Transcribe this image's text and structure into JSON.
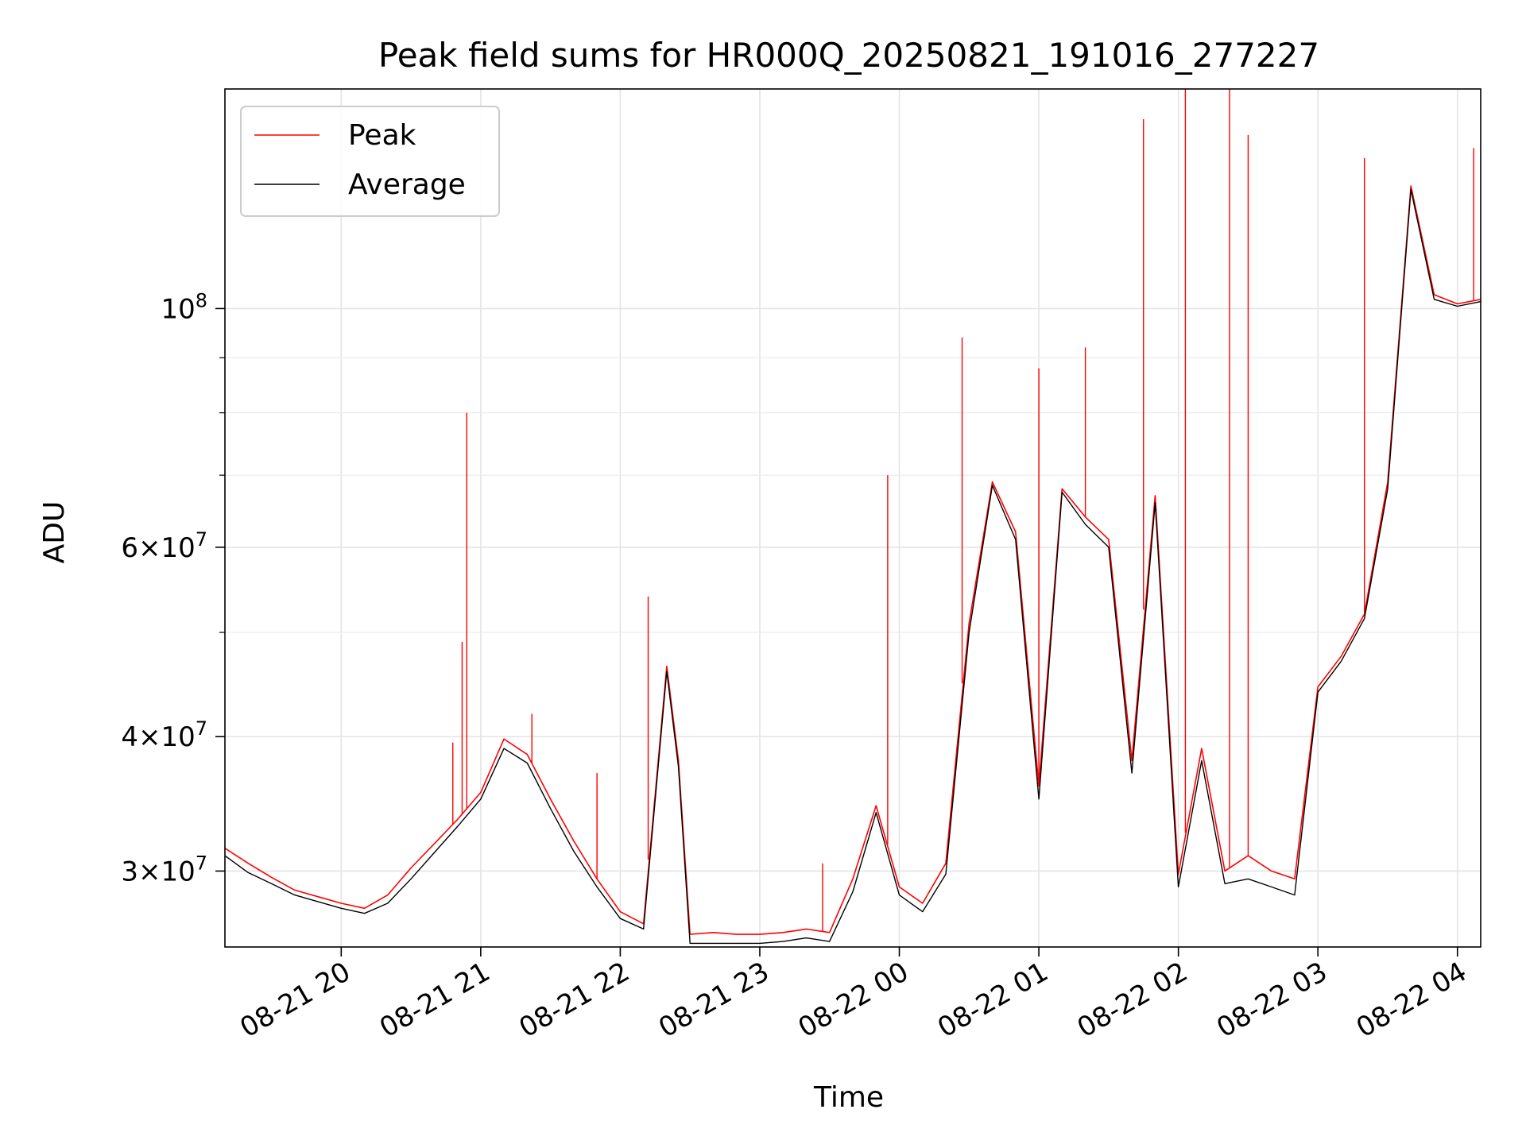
{
  "chart_data": {
    "type": "line",
    "title": "Peak field sums for HR000Q_20250821_191016_277227",
    "xlabel": "Time",
    "ylabel": "ADU",
    "y_scale": "log",
    "ylim": [
      25500000,
      160000000
    ],
    "xlim": [
      "2025-08-21 19:10",
      "2025-08-22 04:10"
    ],
    "grid": true,
    "legend_position": "upper-left",
    "x_ticks": [
      {
        "t": "2025-08-21 20:00",
        "label": "08-21 20"
      },
      {
        "t": "2025-08-21 21:00",
        "label": "08-21 21"
      },
      {
        "t": "2025-08-21 22:00",
        "label": "08-21 22"
      },
      {
        "t": "2025-08-21 23:00",
        "label": "08-21 23"
      },
      {
        "t": "2025-08-22 00:00",
        "label": "08-22 00"
      },
      {
        "t": "2025-08-22 01:00",
        "label": "08-22 01"
      },
      {
        "t": "2025-08-22 02:00",
        "label": "08-22 02"
      },
      {
        "t": "2025-08-22 03:00",
        "label": "08-22 03"
      },
      {
        "t": "2025-08-22 04:00",
        "label": "08-22 04"
      }
    ],
    "y_ticks": [
      {
        "value": 30000000,
        "label": "3×10⁷",
        "base": "3×10",
        "exp": "7"
      },
      {
        "value": 40000000,
        "label": "4×10⁷",
        "base": "4×10",
        "exp": "7"
      },
      {
        "value": 60000000,
        "label": "6×10⁷",
        "base": "6×10",
        "exp": "7"
      },
      {
        "value": 100000000,
        "label": "10⁸",
        "base": "10",
        "exp": "8"
      }
    ],
    "y_minor_ticks": [
      50000000,
      70000000,
      80000000,
      90000000
    ],
    "series": [
      {
        "name": "Peak",
        "color": "#ff0000",
        "x": [
          "2025-08-21 19:10",
          "2025-08-21 19:20",
          "2025-08-21 19:30",
          "2025-08-21 19:40",
          "2025-08-21 19:50",
          "2025-08-21 20:00",
          "2025-08-21 20:10",
          "2025-08-21 20:20",
          "2025-08-21 20:30",
          "2025-08-21 20:40",
          "2025-08-21 20:50",
          "2025-08-21 21:00",
          "2025-08-21 21:10",
          "2025-08-21 21:20",
          "2025-08-21 21:30",
          "2025-08-21 21:40",
          "2025-08-21 21:50",
          "2025-08-21 22:00",
          "2025-08-21 22:10",
          "2025-08-21 22:20",
          "2025-08-21 22:25",
          "2025-08-21 22:30",
          "2025-08-21 22:40",
          "2025-08-21 22:50",
          "2025-08-21 23:00",
          "2025-08-21 23:10",
          "2025-08-21 23:20",
          "2025-08-21 23:30",
          "2025-08-21 23:40",
          "2025-08-21 23:50",
          "2025-08-22 00:00",
          "2025-08-22 00:10",
          "2025-08-22 00:20",
          "2025-08-22 00:30",
          "2025-08-22 00:40",
          "2025-08-22 00:50",
          "2025-08-22 01:00",
          "2025-08-22 01:10",
          "2025-08-22 01:20",
          "2025-08-22 01:30",
          "2025-08-22 01:40",
          "2025-08-22 01:50",
          "2025-08-22 02:00",
          "2025-08-22 02:10",
          "2025-08-22 02:20",
          "2025-08-22 02:30",
          "2025-08-22 02:40",
          "2025-08-22 02:50",
          "2025-08-22 03:00",
          "2025-08-22 03:10",
          "2025-08-22 03:20",
          "2025-08-22 03:30",
          "2025-08-22 03:40",
          "2025-08-22 03:50",
          "2025-08-22 04:00",
          "2025-08-22 04:10"
        ],
        "values": [
          31500000,
          30500000,
          29600000,
          28800000,
          28400000,
          28000000,
          27700000,
          28500000,
          30200000,
          31800000,
          33500000,
          35500000,
          39800000,
          38500000,
          35000000,
          32000000,
          29500000,
          27500000,
          26800000,
          46500000,
          38000000,
          26200000,
          26300000,
          26200000,
          26200000,
          26300000,
          26500000,
          26300000,
          29500000,
          34500000,
          29000000,
          28000000,
          30500000,
          51000000,
          69000000,
          62000000,
          36000000,
          68000000,
          64000000,
          61000000,
          38000000,
          67000000,
          29800000,
          39000000,
          30000000,
          31000000,
          30000000,
          29500000,
          44500000,
          47500000,
          52000000,
          69000000,
          130000000,
          103000000,
          101000000,
          102000000
        ]
      },
      {
        "name": "Average",
        "color": "#000000",
        "x": [
          "2025-08-21 19:10",
          "2025-08-21 19:20",
          "2025-08-21 19:30",
          "2025-08-21 19:40",
          "2025-08-21 19:50",
          "2025-08-21 20:00",
          "2025-08-21 20:10",
          "2025-08-21 20:20",
          "2025-08-21 20:30",
          "2025-08-21 20:40",
          "2025-08-21 20:50",
          "2025-08-21 21:00",
          "2025-08-21 21:10",
          "2025-08-21 21:20",
          "2025-08-21 21:30",
          "2025-08-21 21:40",
          "2025-08-21 21:50",
          "2025-08-21 22:00",
          "2025-08-21 22:10",
          "2025-08-21 22:20",
          "2025-08-21 22:25",
          "2025-08-21 22:30",
          "2025-08-21 22:40",
          "2025-08-21 22:50",
          "2025-08-21 23:00",
          "2025-08-21 23:10",
          "2025-08-21 23:20",
          "2025-08-21 23:30",
          "2025-08-21 23:40",
          "2025-08-21 23:50",
          "2025-08-22 00:00",
          "2025-08-22 00:10",
          "2025-08-22 00:20",
          "2025-08-22 00:30",
          "2025-08-22 00:40",
          "2025-08-22 00:50",
          "2025-08-22 01:00",
          "2025-08-22 01:10",
          "2025-08-22 01:20",
          "2025-08-22 01:30",
          "2025-08-22 01:40",
          "2025-08-22 01:50",
          "2025-08-22 02:00",
          "2025-08-22 02:10",
          "2025-08-22 02:20",
          "2025-08-22 02:30",
          "2025-08-22 02:40",
          "2025-08-22 02:50",
          "2025-08-22 03:00",
          "2025-08-22 03:10",
          "2025-08-22 03:20",
          "2025-08-22 03:30",
          "2025-08-22 03:40",
          "2025-08-22 03:50",
          "2025-08-22 04:00",
          "2025-08-22 04:10"
        ],
        "values": [
          31000000,
          29900000,
          29200000,
          28500000,
          28100000,
          27700000,
          27400000,
          28000000,
          29500000,
          31200000,
          33000000,
          35000000,
          39000000,
          37800000,
          34300000,
          31300000,
          29000000,
          27100000,
          26500000,
          46000000,
          37500000,
          25700000,
          25700000,
          25700000,
          25700000,
          25800000,
          26000000,
          25800000,
          28700000,
          34000000,
          28500000,
          27500000,
          29800000,
          50000000,
          68500000,
          61000000,
          35000000,
          67500000,
          63000000,
          60000000,
          37000000,
          66000000,
          29000000,
          38000000,
          29200000,
          29500000,
          29000000,
          28500000,
          44000000,
          47000000,
          51500000,
          68000000,
          129000000,
          102000000,
          100500000,
          101500000
        ]
      }
    ],
    "spikes": [
      {
        "t": "2025-08-21 20:48",
        "value": 39500000
      },
      {
        "t": "2025-08-21 20:54",
        "value": 80000000
      },
      {
        "t": "2025-08-21 20:52",
        "value": 49000000
      },
      {
        "t": "2025-08-21 21:22",
        "value": 42000000
      },
      {
        "t": "2025-08-21 21:50",
        "value": 37000000
      },
      {
        "t": "2025-08-21 22:12",
        "value": 54000000
      },
      {
        "t": "2025-08-21 23:27",
        "value": 30500000
      },
      {
        "t": "2025-08-21 23:55",
        "value": 70000000
      },
      {
        "t": "2025-08-22 00:27",
        "value": 94000000
      },
      {
        "t": "2025-08-22 01:00",
        "value": 88000000
      },
      {
        "t": "2025-08-22 01:20",
        "value": 92000000
      },
      {
        "t": "2025-08-22 01:45",
        "value": 150000000
      },
      {
        "t": "2025-08-22 02:03",
        "value": 160000000
      },
      {
        "t": "2025-08-22 02:22",
        "value": 160000000
      },
      {
        "t": "2025-08-22 02:30",
        "value": 145000000
      },
      {
        "t": "2025-08-22 03:20",
        "value": 138000000
      },
      {
        "t": "2025-08-22 04:07",
        "value": 141000000
      }
    ]
  },
  "legend": {
    "items": [
      {
        "label": "Peak",
        "color": "#ff0000"
      },
      {
        "label": "Average",
        "color": "#000000"
      }
    ]
  }
}
